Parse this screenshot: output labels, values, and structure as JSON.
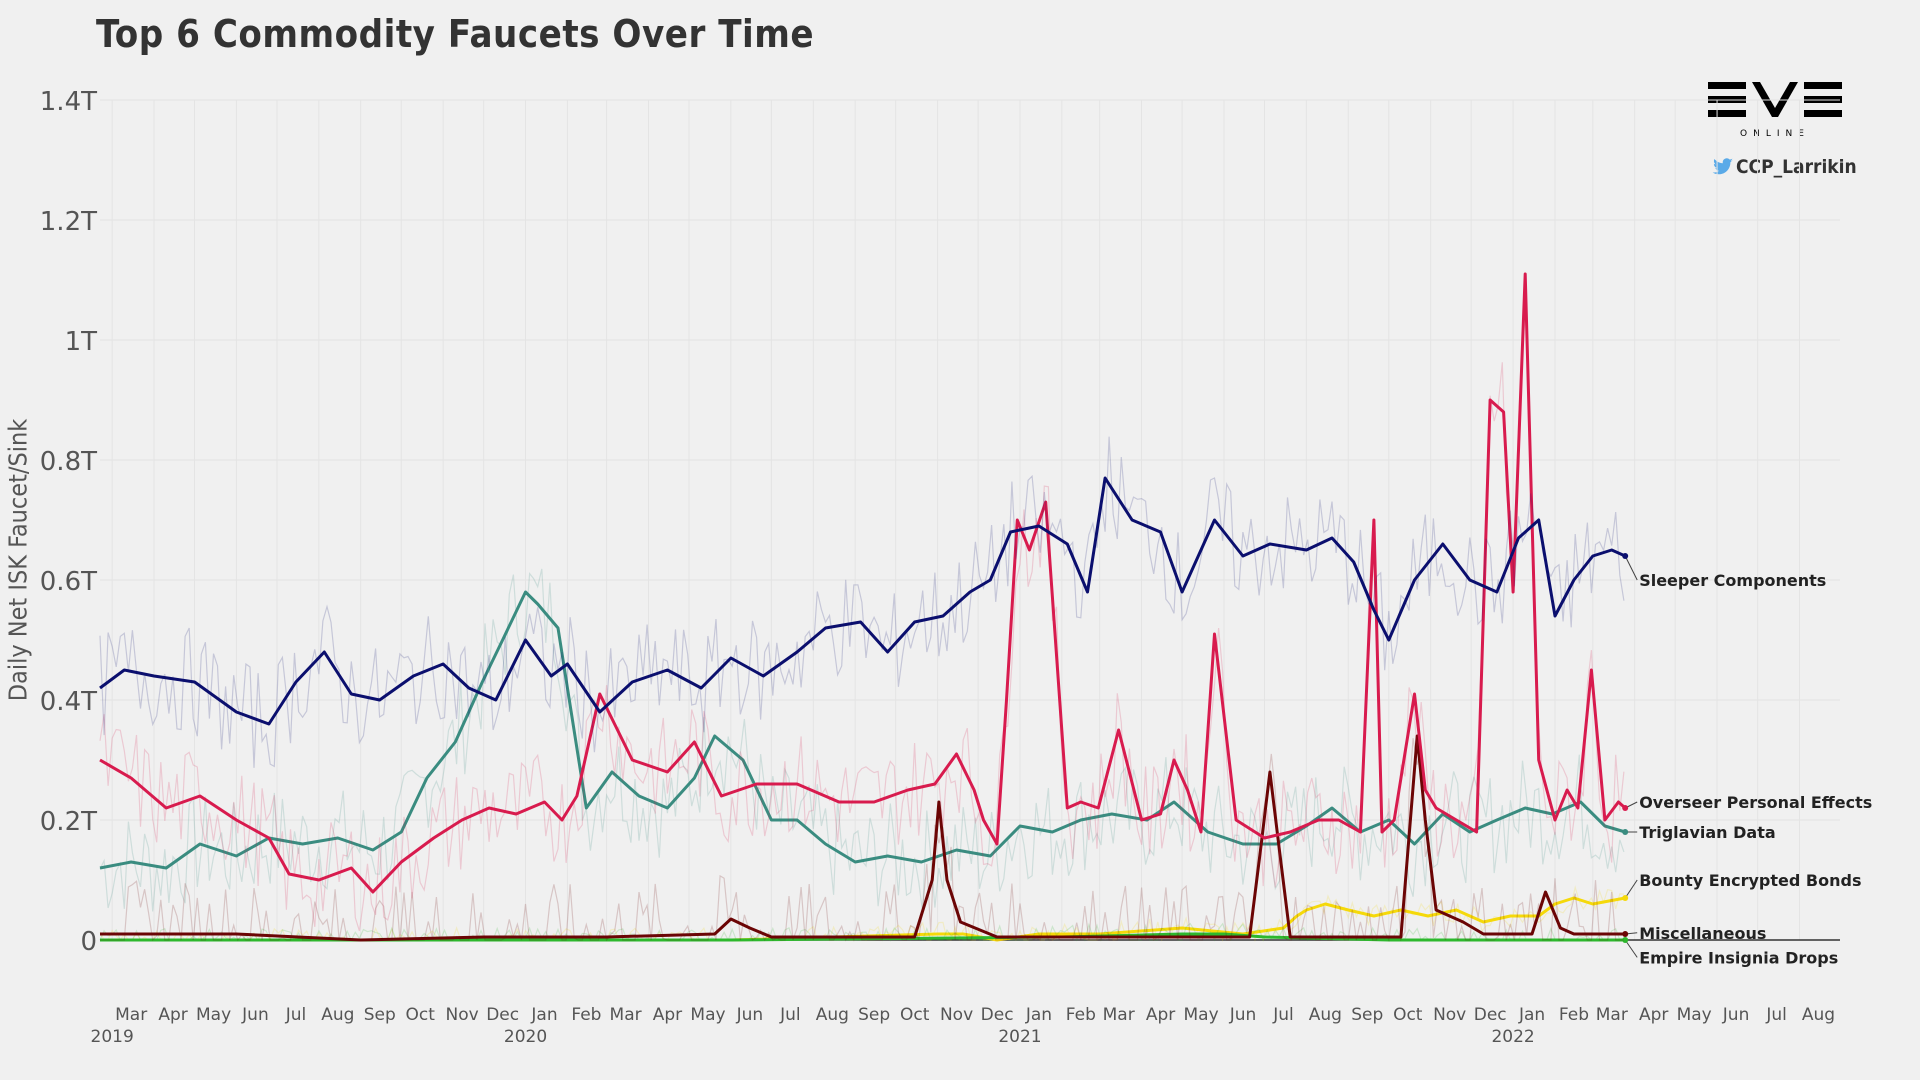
{
  "title": "Top 6 Commodity Faucets Over Time",
  "logo": {
    "text": "EVE",
    "subtext": "ONLINE"
  },
  "twitter": {
    "icon": "twitter-bird-icon",
    "handle": "CCP_Larrikin"
  },
  "chart_data": {
    "type": "line",
    "title": "Top 6 Commodity Faucets Over Time",
    "ylabel": "Daily Net ISK Faucet/Sink",
    "xlabel": "",
    "ylim": [
      0,
      1.4
    ],
    "y_units": "trillion ISK",
    "xlim": [
      "2019-02-20",
      "2022-08-31"
    ],
    "y_ticks": [
      {
        "value": 0,
        "label": "0"
      },
      {
        "value": 0.2,
        "label": "0.2T"
      },
      {
        "value": 0.4,
        "label": "0.4T"
      },
      {
        "value": 0.6,
        "label": "0.6T"
      },
      {
        "value": 0.8,
        "label": "0.8T"
      },
      {
        "value": 1.0,
        "label": "1T"
      },
      {
        "value": 1.2,
        "label": "1.2T"
      },
      {
        "value": 1.4,
        "label": "1.4T"
      }
    ],
    "x_ticks": [
      {
        "date": "2019-03-01",
        "label": "Mar",
        "year": "2019"
      },
      {
        "date": "2019-04-01",
        "label": "Apr"
      },
      {
        "date": "2019-05-01",
        "label": "May"
      },
      {
        "date": "2019-06-01",
        "label": "Jun"
      },
      {
        "date": "2019-07-01",
        "label": "Jul"
      },
      {
        "date": "2019-08-01",
        "label": "Aug"
      },
      {
        "date": "2019-09-01",
        "label": "Sep"
      },
      {
        "date": "2019-10-01",
        "label": "Oct"
      },
      {
        "date": "2019-11-01",
        "label": "Nov"
      },
      {
        "date": "2019-12-01",
        "label": "Dec"
      },
      {
        "date": "2020-01-01",
        "label": "Jan",
        "year": "2020"
      },
      {
        "date": "2020-02-01",
        "label": "Feb"
      },
      {
        "date": "2020-03-01",
        "label": "Mar"
      },
      {
        "date": "2020-04-01",
        "label": "Apr"
      },
      {
        "date": "2020-05-01",
        "label": "May"
      },
      {
        "date": "2020-06-01",
        "label": "Jun"
      },
      {
        "date": "2020-07-01",
        "label": "Jul"
      },
      {
        "date": "2020-08-01",
        "label": "Aug"
      },
      {
        "date": "2020-09-01",
        "label": "Sep"
      },
      {
        "date": "2020-10-01",
        "label": "Oct"
      },
      {
        "date": "2020-11-01",
        "label": "Nov"
      },
      {
        "date": "2020-12-01",
        "label": "Dec"
      },
      {
        "date": "2021-01-01",
        "label": "Jan",
        "year": "2021"
      },
      {
        "date": "2021-02-01",
        "label": "Feb"
      },
      {
        "date": "2021-03-01",
        "label": "Mar"
      },
      {
        "date": "2021-04-01",
        "label": "Apr"
      },
      {
        "date": "2021-05-01",
        "label": "May"
      },
      {
        "date": "2021-06-01",
        "label": "Jun"
      },
      {
        "date": "2021-07-01",
        "label": "Jul"
      },
      {
        "date": "2021-08-01",
        "label": "Aug"
      },
      {
        "date": "2021-09-01",
        "label": "Sep"
      },
      {
        "date": "2021-10-01",
        "label": "Oct"
      },
      {
        "date": "2021-11-01",
        "label": "Nov"
      },
      {
        "date": "2021-12-01",
        "label": "Dec"
      },
      {
        "date": "2022-01-01",
        "label": "Jan",
        "year": "2022"
      },
      {
        "date": "2022-02-01",
        "label": "Feb"
      },
      {
        "date": "2022-03-01",
        "label": "Mar"
      },
      {
        "date": "2022-04-01",
        "label": "Apr"
      },
      {
        "date": "2022-05-01",
        "label": "May"
      },
      {
        "date": "2022-06-01",
        "label": "Jun"
      },
      {
        "date": "2022-07-01",
        "label": "Jul"
      },
      {
        "date": "2022-08-01",
        "label": "Aug"
      }
    ],
    "grid": true,
    "legend": "direct labels at right end of each series",
    "series": [
      {
        "name": "Sleeper Components",
        "color": "#0b0f6e",
        "x": [
          "2019-02-20",
          "2019-03-10",
          "2019-04-01",
          "2019-05-01",
          "2019-06-01",
          "2019-06-25",
          "2019-07-15",
          "2019-08-05",
          "2019-08-25",
          "2019-09-15",
          "2019-10-10",
          "2019-11-01",
          "2019-11-20",
          "2019-12-10",
          "2020-01-01",
          "2020-01-20",
          "2020-02-01",
          "2020-02-25",
          "2020-03-20",
          "2020-04-15",
          "2020-05-10",
          "2020-06-01",
          "2020-06-25",
          "2020-07-20",
          "2020-08-10",
          "2020-09-05",
          "2020-09-25",
          "2020-10-15",
          "2020-11-05",
          "2020-11-25",
          "2020-12-10",
          "2020-12-25",
          "2021-01-15",
          "2021-02-05",
          "2021-02-20",
          "2021-03-05",
          "2021-03-25",
          "2021-04-15",
          "2021-05-01",
          "2021-05-25",
          "2021-06-15",
          "2021-07-05",
          "2021-08-01",
          "2021-08-20",
          "2021-09-05",
          "2021-09-20",
          "2021-10-01",
          "2021-10-20",
          "2021-11-10",
          "2021-11-30",
          "2021-12-20",
          "2022-01-05",
          "2022-01-20",
          "2022-02-01",
          "2022-02-15",
          "2022-03-01",
          "2022-03-15",
          "2022-03-25"
        ],
        "values": [
          0.42,
          0.45,
          0.44,
          0.43,
          0.38,
          0.36,
          0.43,
          0.48,
          0.41,
          0.4,
          0.44,
          0.46,
          0.42,
          0.4,
          0.5,
          0.44,
          0.46,
          0.38,
          0.43,
          0.45,
          0.42,
          0.47,
          0.44,
          0.48,
          0.52,
          0.53,
          0.48,
          0.53,
          0.54,
          0.58,
          0.6,
          0.68,
          0.69,
          0.66,
          0.58,
          0.77,
          0.7,
          0.68,
          0.58,
          0.7,
          0.64,
          0.66,
          0.65,
          0.67,
          0.63,
          0.55,
          0.5,
          0.6,
          0.66,
          0.6,
          0.58,
          0.67,
          0.7,
          0.54,
          0.6,
          0.64,
          0.65,
          0.64
        ]
      },
      {
        "name": "Overseer Personal Effects",
        "color": "#d81b4e",
        "x": [
          "2019-02-20",
          "2019-03-15",
          "2019-04-10",
          "2019-05-05",
          "2019-06-01",
          "2019-06-25",
          "2019-07-10",
          "2019-08-01",
          "2019-08-25",
          "2019-09-10",
          "2019-10-01",
          "2019-10-25",
          "2019-11-15",
          "2019-12-05",
          "2019-12-25",
          "2020-01-15",
          "2020-01-28",
          "2020-02-08",
          "2020-02-25",
          "2020-03-20",
          "2020-04-15",
          "2020-05-05",
          "2020-05-25",
          "2020-06-20",
          "2020-07-20",
          "2020-08-20",
          "2020-09-15",
          "2020-10-10",
          "2020-10-30",
          "2020-11-15",
          "2020-11-28",
          "2020-12-05",
          "2020-12-15",
          "2020-12-22",
          "2020-12-30",
          "2021-01-08",
          "2021-01-20",
          "2021-02-05",
          "2021-02-15",
          "2021-02-28",
          "2021-03-15",
          "2021-04-01",
          "2021-04-15",
          "2021-04-25",
          "2021-05-05",
          "2021-05-15",
          "2021-05-25",
          "2021-06-10",
          "2021-07-01",
          "2021-07-20",
          "2021-08-10",
          "2021-08-25",
          "2021-09-10",
          "2021-09-20",
          "2021-09-26",
          "2021-10-05",
          "2021-10-20",
          "2021-10-28",
          "2021-11-05",
          "2021-11-20",
          "2021-12-05",
          "2021-12-15",
          "2021-12-25",
          "2022-01-01",
          "2022-01-10",
          "2022-01-20",
          "2022-02-01",
          "2022-02-10",
          "2022-02-18",
          "2022-02-28",
          "2022-03-10",
          "2022-03-20",
          "2022-03-25"
        ],
        "values": [
          0.3,
          0.27,
          0.22,
          0.24,
          0.2,
          0.17,
          0.11,
          0.1,
          0.12,
          0.08,
          0.13,
          0.17,
          0.2,
          0.22,
          0.21,
          0.23,
          0.2,
          0.24,
          0.41,
          0.3,
          0.28,
          0.33,
          0.24,
          0.26,
          0.26,
          0.23,
          0.23,
          0.25,
          0.26,
          0.31,
          0.25,
          0.2,
          0.16,
          0.4,
          0.7,
          0.65,
          0.73,
          0.22,
          0.23,
          0.22,
          0.35,
          0.2,
          0.21,
          0.3,
          0.25,
          0.18,
          0.51,
          0.2,
          0.17,
          0.18,
          0.2,
          0.2,
          0.18,
          0.7,
          0.18,
          0.2,
          0.41,
          0.25,
          0.22,
          0.2,
          0.18,
          0.9,
          0.88,
          0.58,
          1.11,
          0.3,
          0.2,
          0.25,
          0.22,
          0.45,
          0.2,
          0.23,
          0.22
        ]
      },
      {
        "name": "Triglavian Data",
        "color": "#3a8c80",
        "x": [
          "2019-02-20",
          "2019-03-15",
          "2019-04-10",
          "2019-05-05",
          "2019-06-01",
          "2019-06-25",
          "2019-07-20",
          "2019-08-15",
          "2019-09-10",
          "2019-10-01",
          "2019-10-20",
          "2019-11-10",
          "2019-11-30",
          "2019-12-15",
          "2020-01-01",
          "2020-01-10",
          "2020-01-25",
          "2020-02-15",
          "2020-03-05",
          "2020-03-25",
          "2020-04-15",
          "2020-05-05",
          "2020-05-20",
          "2020-06-10",
          "2020-07-01",
          "2020-07-20",
          "2020-08-10",
          "2020-09-01",
          "2020-09-25",
          "2020-10-20",
          "2020-11-15",
          "2020-12-10",
          "2021-01-01",
          "2021-01-25",
          "2021-02-15",
          "2021-03-10",
          "2021-04-05",
          "2021-04-25",
          "2021-05-20",
          "2021-06-15",
          "2021-07-10",
          "2021-08-01",
          "2021-08-20",
          "2021-09-10",
          "2021-10-01",
          "2021-10-20",
          "2021-11-10",
          "2021-11-30",
          "2021-12-20",
          "2022-01-10",
          "2022-01-30",
          "2022-02-20",
          "2022-03-10",
          "2022-03-25"
        ],
        "values": [
          0.12,
          0.13,
          0.12,
          0.16,
          0.14,
          0.17,
          0.16,
          0.17,
          0.15,
          0.18,
          0.27,
          0.33,
          0.43,
          0.5,
          0.58,
          0.56,
          0.52,
          0.22,
          0.28,
          0.24,
          0.22,
          0.27,
          0.34,
          0.3,
          0.2,
          0.2,
          0.16,
          0.13,
          0.14,
          0.13,
          0.15,
          0.14,
          0.19,
          0.18,
          0.2,
          0.21,
          0.2,
          0.23,
          0.18,
          0.16,
          0.16,
          0.19,
          0.22,
          0.18,
          0.2,
          0.16,
          0.21,
          0.18,
          0.2,
          0.22,
          0.21,
          0.23,
          0.19,
          0.18
        ]
      },
      {
        "name": "Bounty Encrypted Bonds",
        "color": "#f5d90a",
        "x": [
          "2019-02-20",
          "2020-06-01",
          "2020-11-01",
          "2020-11-20",
          "2020-12-15",
          "2021-01-15",
          "2021-03-01",
          "2021-05-01",
          "2021-06-15",
          "2021-07-15",
          "2021-07-25",
          "2021-08-01",
          "2021-08-15",
          "2021-09-01",
          "2021-09-20",
          "2021-10-10",
          "2021-10-30",
          "2021-11-20",
          "2021-12-10",
          "2021-12-30",
          "2022-01-20",
          "2022-02-01",
          "2022-02-15",
          "2022-03-01",
          "2022-03-25"
        ],
        "values": [
          0.0,
          0.0,
          0.01,
          0.01,
          0.0,
          0.01,
          0.01,
          0.02,
          0.01,
          0.02,
          0.04,
          0.05,
          0.06,
          0.05,
          0.04,
          0.05,
          0.04,
          0.05,
          0.03,
          0.04,
          0.04,
          0.06,
          0.07,
          0.06,
          0.07
        ]
      },
      {
        "name": "Miscellaneous",
        "color": "#6b0505",
        "x": [
          "2019-02-20",
          "2019-06-01",
          "2019-09-01",
          "2019-12-01",
          "2020-03-01",
          "2020-05-20",
          "2020-06-01",
          "2020-06-15",
          "2020-07-01",
          "2020-10-15",
          "2020-10-28",
          "2020-11-02",
          "2020-11-08",
          "2020-11-18",
          "2020-12-15",
          "2021-06-20",
          "2021-06-28",
          "2021-07-05",
          "2021-07-12",
          "2021-07-20",
          "2021-10-10",
          "2021-10-22",
          "2021-10-28",
          "2021-11-05",
          "2021-11-15",
          "2021-11-25",
          "2021-12-10",
          "2022-01-15",
          "2022-01-25",
          "2022-02-05",
          "2022-02-15",
          "2022-03-25"
        ],
        "values": [
          0.01,
          0.01,
          0.0,
          0.005,
          0.005,
          0.01,
          0.035,
          0.02,
          0.005,
          0.005,
          0.1,
          0.23,
          0.1,
          0.03,
          0.005,
          0.005,
          0.15,
          0.28,
          0.15,
          0.005,
          0.005,
          0.34,
          0.2,
          0.05,
          0.04,
          0.03,
          0.01,
          0.01,
          0.08,
          0.02,
          0.01,
          0.01
        ]
      },
      {
        "name": "Empire Insignia Drops",
        "color": "#2db82d",
        "x": [
          "2019-02-20",
          "2020-06-01",
          "2021-02-01",
          "2021-05-01",
          "2021-06-01",
          "2021-07-01",
          "2021-10-01",
          "2022-03-25"
        ],
        "values": [
          0.0,
          0.0,
          0.005,
          0.01,
          0.01,
          0.005,
          0.0,
          0.0
        ]
      }
    ]
  }
}
